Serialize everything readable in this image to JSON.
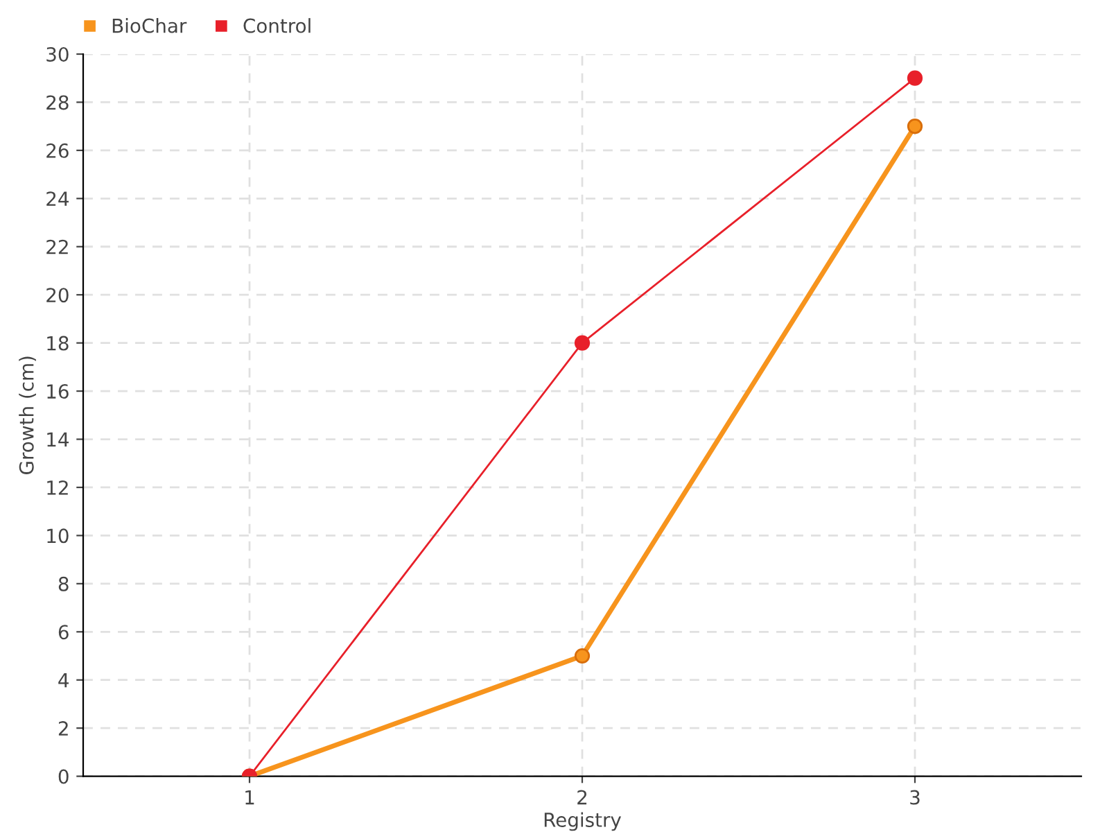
{
  "chart_data": {
    "type": "line",
    "xlabel": "Registry",
    "ylabel": "Growth (cm)",
    "categories": [
      "1",
      "2",
      "3"
    ],
    "series": [
      {
        "name": "BioChar",
        "color": "#f7941d",
        "values": [
          0,
          5,
          27
        ]
      },
      {
        "name": "Control",
        "color": "#e8202a",
        "values": [
          0,
          18,
          29
        ]
      }
    ],
    "ylim": [
      0,
      30
    ],
    "yticks": [
      0,
      2,
      4,
      6,
      8,
      10,
      12,
      14,
      16,
      18,
      20,
      22,
      24,
      26,
      28,
      30
    ],
    "grid": true,
    "legend": "top left",
    "marker": "circle",
    "line_style": "solid"
  }
}
